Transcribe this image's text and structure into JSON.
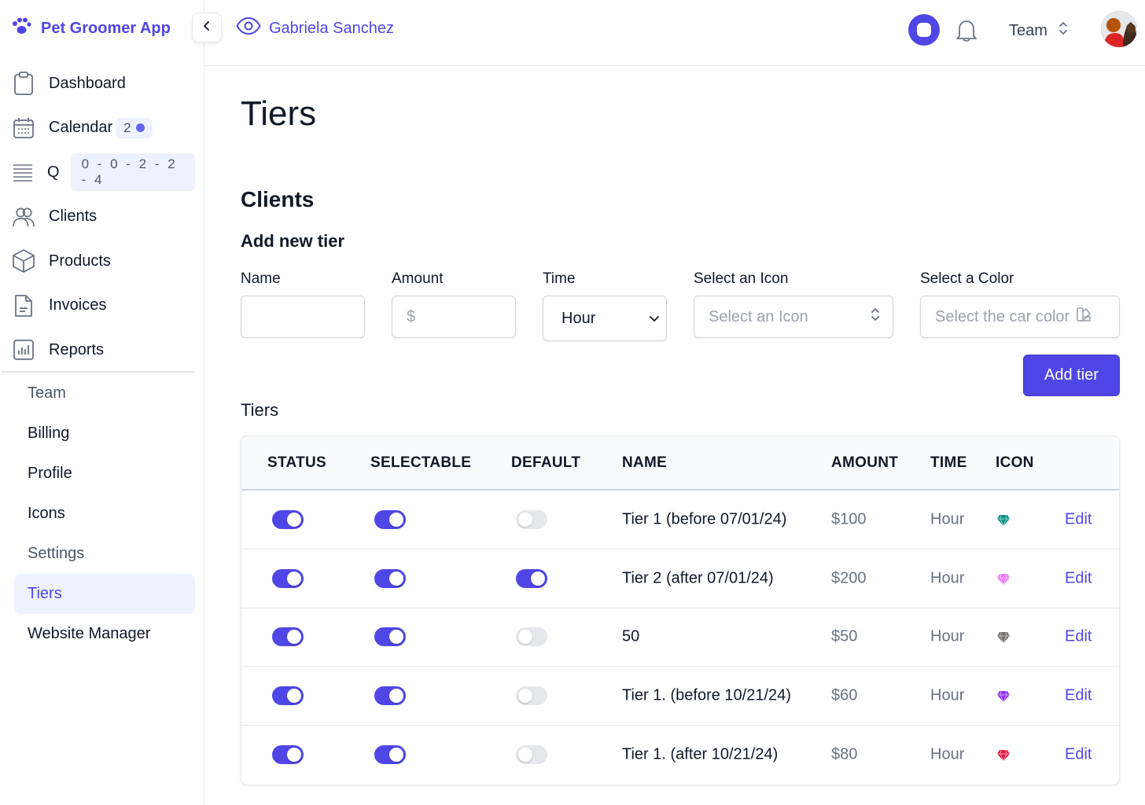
{
  "app": {
    "name": "Pet Groomer App"
  },
  "sidebar": {
    "items": [
      {
        "label": "Dashboard",
        "icon": "clipboard-icon"
      },
      {
        "label": "Calendar",
        "icon": "calendar-icon",
        "badge": "2"
      },
      {
        "label": "Q",
        "icon": "queue-icon",
        "badge": "0 - 0 - 2 - 2 - 4"
      },
      {
        "label": "Clients",
        "icon": "users-icon"
      },
      {
        "label": "Products",
        "icon": "cube-icon"
      },
      {
        "label": "Invoices",
        "icon": "document-icon"
      },
      {
        "label": "Reports",
        "icon": "chart-icon"
      }
    ],
    "subitems": [
      {
        "label": "Team"
      },
      {
        "label": "Billing"
      },
      {
        "label": "Profile"
      },
      {
        "label": "Icons"
      },
      {
        "label": "Settings"
      },
      {
        "label": "Tiers",
        "active": true
      },
      {
        "label": "Website Manager"
      }
    ]
  },
  "header": {
    "viewing_as": "Gabriela Sanchez",
    "team_label": "Team"
  },
  "page": {
    "title": "Tiers",
    "section_title": "Clients",
    "form_title": "Add new tier",
    "tiers_label": "Tiers"
  },
  "form": {
    "name_label": "Name",
    "amount_label": "Amount",
    "amount_prefix": "$",
    "time_label": "Time",
    "time_value": "Hour",
    "icon_label": "Select an Icon",
    "icon_placeholder": "Select an Icon",
    "color_label": "Select a Color",
    "color_placeholder": "Select the car color",
    "add_button": "Add tier"
  },
  "table": {
    "headers": [
      "STATUS",
      "SELECTABLE",
      "DEFAULT",
      "NAME",
      "AMOUNT",
      "TIME",
      "ICON"
    ],
    "rows": [
      {
        "status": true,
        "selectable": true,
        "default": false,
        "name": "Tier 1 (before 07/01/24)",
        "amount": "$100",
        "time": "Hour",
        "icon_color": "#0d9488",
        "edit": "Edit"
      },
      {
        "status": true,
        "selectable": true,
        "default": true,
        "name": "Tier 2 (after 07/01/24)",
        "amount": "$200",
        "time": "Hour",
        "icon_color": "#e879f9",
        "edit": "Edit"
      },
      {
        "status": true,
        "selectable": true,
        "default": false,
        "name": "50",
        "amount": "$50",
        "time": "Hour",
        "icon_color": "#78716c",
        "edit": "Edit"
      },
      {
        "status": true,
        "selectable": true,
        "default": false,
        "name": "Tier 1. (before 10/21/24)",
        "amount": "$60",
        "time": "Hour",
        "icon_color": "#9333ea",
        "edit": "Edit"
      },
      {
        "status": true,
        "selectable": true,
        "default": false,
        "name": "Tier 1. (after 10/21/24)",
        "amount": "$80",
        "time": "Hour",
        "icon_color": "#e11d48",
        "edit": "Edit"
      }
    ]
  },
  "colors": {
    "accent": "#4f46e5",
    "accent_light": "#eef2ff"
  }
}
